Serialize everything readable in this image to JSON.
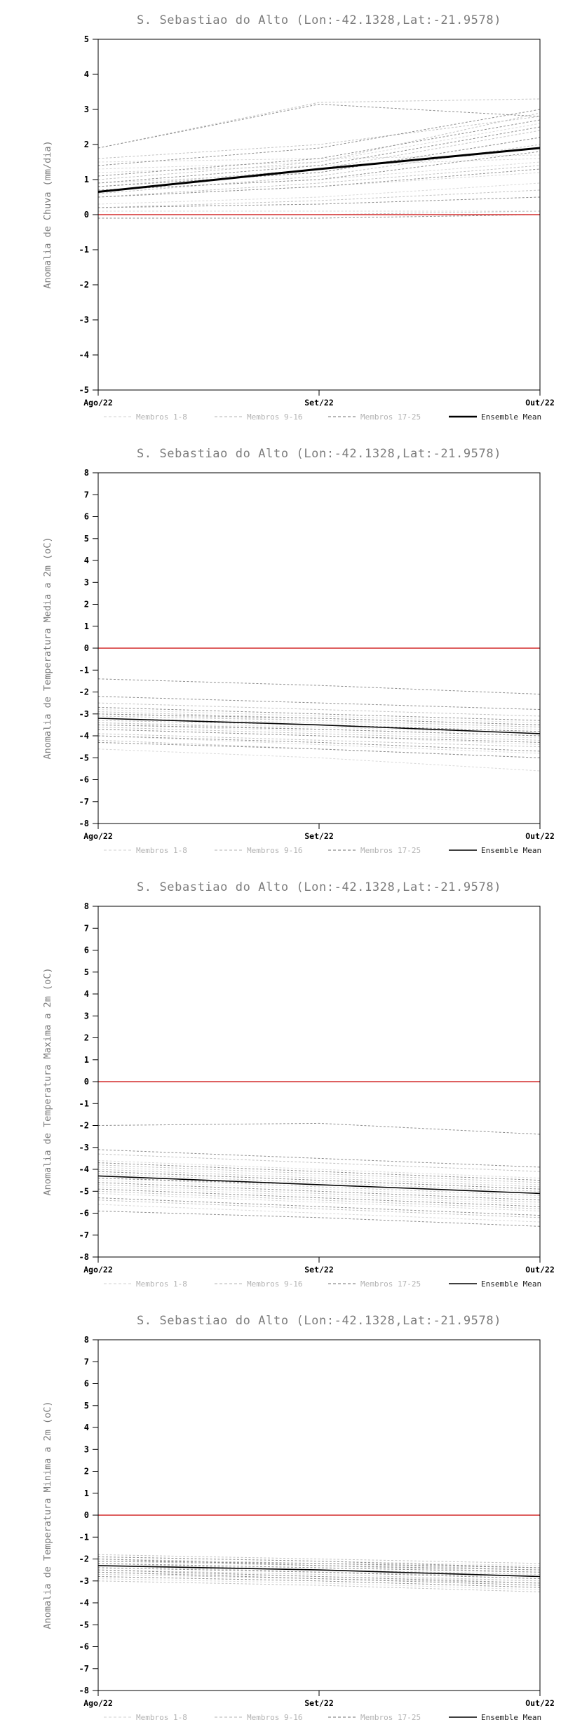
{
  "page": {
    "background": "#ffffff"
  },
  "legend": {
    "entries": [
      {
        "label": "Membros 1-8",
        "color": "#d9d9d9",
        "style": "dashed"
      },
      {
        "label": "Membros 9-16",
        "color": "#c2c2c2",
        "style": "dashed"
      },
      {
        "label": "Membros 17-25",
        "color": "#8e8e8e",
        "style": "dashed"
      },
      {
        "label": "Ensemble Mean",
        "color": "#000000",
        "style": "solid"
      }
    ]
  },
  "chart_data": [
    {
      "type": "line",
      "title": "S. Sebastiao do Alto (Lon:-42.1328,Lat:-21.9578)",
      "ylabel": "Anomalia de Chuva (mm/dia)",
      "ylim": [
        -5,
        5
      ],
      "ytick_step": 1,
      "x_categories": [
        "Ago/22",
        "Set/22",
        "Out/22"
      ],
      "zero_line": {
        "value": 0,
        "color": "#d94a4a"
      },
      "ensemble_mean": [
        0.65,
        1.3,
        1.9
      ],
      "mean_width": 3,
      "members": [
        {
          "group": 0,
          "lines": [
            [
              1.5,
              1.6,
              1.7
            ],
            [
              1.3,
              1.5,
              2.6
            ],
            [
              1.2,
              1.4,
              1.6
            ],
            [
              0.9,
              1.2,
              2.2
            ],
            [
              0.7,
              1.0,
              1.5
            ],
            [
              0.5,
              0.8,
              1.2
            ],
            [
              0.3,
              0.5,
              0.9
            ],
            [
              0.1,
              0.1,
              0.1
            ]
          ]
        },
        {
          "group": 1,
          "lines": [
            [
              1.9,
              3.2,
              3.3
            ],
            [
              1.0,
              1.5,
              2.9
            ],
            [
              0.8,
              1.3,
              2.4
            ],
            [
              0.6,
              1.1,
              2.0
            ],
            [
              0.5,
              0.9,
              1.4
            ],
            [
              0.2,
              0.4,
              0.7
            ],
            [
              0.0,
              0.0,
              0.1
            ],
            [
              1.6,
              2.0,
              2.8
            ]
          ]
        },
        {
          "group": 2,
          "lines": [
            [
              1.9,
              3.15,
              2.8
            ],
            [
              1.4,
              1.9,
              3.0
            ],
            [
              1.1,
              1.6,
              2.7
            ],
            [
              0.9,
              1.4,
              2.5
            ],
            [
              0.8,
              1.2,
              2.2
            ],
            [
              0.7,
              1.0,
              1.8
            ],
            [
              0.5,
              0.8,
              1.3
            ],
            [
              0.2,
              0.3,
              0.5
            ],
            [
              -0.1,
              -0.1,
              0.0
            ]
          ]
        }
      ]
    },
    {
      "type": "line",
      "title": "S. Sebastiao do Alto (Lon:-42.1328,Lat:-21.9578)",
      "ylabel": "Anomalia de Temperatura Media a 2m (oC)",
      "ylim": [
        -8,
        8
      ],
      "ytick_step": 1,
      "x_categories": [
        "Ago/22",
        "Set/22",
        "Out/22"
      ],
      "zero_line": {
        "value": 0,
        "color": "#d94a4a"
      },
      "ensemble_mean": [
        -3.2,
        -3.5,
        -3.9
      ],
      "mean_width": 1.6,
      "members": [
        {
          "group": 0,
          "lines": [
            [
              -2.8,
              -3.1,
              -3.4
            ],
            [
              -3.0,
              -3.3,
              -3.6
            ],
            [
              -3.2,
              -3.4,
              -3.7
            ],
            [
              -3.4,
              -3.6,
              -3.9
            ],
            [
              -3.5,
              -3.8,
              -4.1
            ],
            [
              -3.7,
              -4.0,
              -4.4
            ],
            [
              -4.0,
              -4.4,
              -4.8
            ],
            [
              -4.6,
              -5.0,
              -5.6
            ]
          ]
        },
        {
          "group": 1,
          "lines": [
            [
              -2.5,
              -2.8,
              -3.1
            ],
            [
              -2.9,
              -3.2,
              -3.5
            ],
            [
              -3.1,
              -3.3,
              -3.6
            ],
            [
              -3.3,
              -3.5,
              -3.8
            ],
            [
              -3.4,
              -3.7,
              -4.0
            ],
            [
              -3.6,
              -3.9,
              -4.2
            ],
            [
              -3.9,
              -4.2,
              -4.5
            ],
            [
              -4.2,
              -4.6,
              -5.0
            ]
          ]
        },
        {
          "group": 2,
          "lines": [
            [
              -1.4,
              -1.7,
              -2.1
            ],
            [
              -2.2,
              -2.5,
              -2.8
            ],
            [
              -2.7,
              -3.0,
              -3.3
            ],
            [
              -3.0,
              -3.2,
              -3.5
            ],
            [
              -3.2,
              -3.5,
              -3.8
            ],
            [
              -3.5,
              -3.7,
              -4.0
            ],
            [
              -3.7,
              -4.0,
              -4.3
            ],
            [
              -4.0,
              -4.3,
              -4.7
            ],
            [
              -4.3,
              -4.6,
              -5.0
            ]
          ]
        }
      ]
    },
    {
      "type": "line",
      "title": "S. Sebastiao do Alto (Lon:-42.1328,Lat:-21.9578)",
      "ylabel": "Anomalia de Temperatura Maxima a 2m (oC)",
      "ylim": [
        -8,
        8
      ],
      "ytick_step": 1,
      "x_categories": [
        "Ago/22",
        "Set/22",
        "Out/22"
      ],
      "zero_line": {
        "value": 0,
        "color": "#d94a4a"
      },
      "ensemble_mean": [
        -4.3,
        -4.7,
        -5.1
      ],
      "mean_width": 1.6,
      "members": [
        {
          "group": 0,
          "lines": [
            [
              -3.6,
              -4.0,
              -4.4
            ],
            [
              -3.9,
              -4.3,
              -4.7
            ],
            [
              -4.1,
              -4.5,
              -4.9
            ],
            [
              -4.3,
              -4.7,
              -5.1
            ],
            [
              -4.5,
              -4.9,
              -5.3
            ],
            [
              -4.8,
              -5.2,
              -5.6
            ],
            [
              -5.1,
              -5.5,
              -5.9
            ],
            [
              -5.6,
              -6.0,
              -6.4
            ]
          ]
        },
        {
          "group": 1,
          "lines": [
            [
              -3.3,
              -3.7,
              -4.1
            ],
            [
              -3.8,
              -4.2,
              -4.6
            ],
            [
              -4.0,
              -4.4,
              -4.8
            ],
            [
              -4.2,
              -4.6,
              -5.0
            ],
            [
              -4.4,
              -4.8,
              -5.2
            ],
            [
              -4.7,
              -5.1,
              -5.5
            ],
            [
              -5.0,
              -5.4,
              -5.8
            ],
            [
              -5.4,
              -5.8,
              -6.2
            ]
          ]
        },
        {
          "group": 2,
          "lines": [
            [
              -2.0,
              -1.9,
              -2.4
            ],
            [
              -3.1,
              -3.5,
              -3.9
            ],
            [
              -3.7,
              -4.1,
              -4.5
            ],
            [
              -4.1,
              -4.5,
              -4.9
            ],
            [
              -4.4,
              -4.7,
              -5.1
            ],
            [
              -4.6,
              -5.0,
              -5.4
            ],
            [
              -4.9,
              -5.3,
              -5.7
            ],
            [
              -5.3,
              -5.7,
              -6.1
            ],
            [
              -5.9,
              -6.2,
              -6.6
            ]
          ]
        }
      ]
    },
    {
      "type": "line",
      "title": "S. Sebastiao do Alto (Lon:-42.1328,Lat:-21.9578)",
      "ylabel": "Anomalia de Temperatura Minima a 2m (oC)",
      "ylim": [
        -8,
        8
      ],
      "ytick_step": 1,
      "x_categories": [
        "Ago/22",
        "Set/22",
        "Out/22"
      ],
      "zero_line": {
        "value": 0,
        "color": "#d94a4a"
      },
      "ensemble_mean": [
        -2.3,
        -2.5,
        -2.8
      ],
      "mean_width": 1.6,
      "members": [
        {
          "group": 0,
          "lines": [
            [
              -1.9,
              -2.1,
              -2.3
            ],
            [
              -2.0,
              -2.2,
              -2.4
            ],
            [
              -2.1,
              -2.3,
              -2.5
            ],
            [
              -2.2,
              -2.4,
              -2.6
            ],
            [
              -2.3,
              -2.5,
              -2.7
            ],
            [
              -2.4,
              -2.6,
              -2.9
            ],
            [
              -2.6,
              -2.8,
              -3.0
            ],
            [
              -2.9,
              -3.1,
              -3.4
            ]
          ]
        },
        {
          "group": 1,
          "lines": [
            [
              -1.8,
              -2.0,
              -2.2
            ],
            [
              -2.0,
              -2.2,
              -2.5
            ],
            [
              -2.1,
              -2.3,
              -2.6
            ],
            [
              -2.2,
              -2.5,
              -2.7
            ],
            [
              -2.3,
              -2.6,
              -2.8
            ],
            [
              -2.5,
              -2.7,
              -3.0
            ],
            [
              -2.7,
              -2.9,
              -3.1
            ],
            [
              -3.0,
              -3.2,
              -3.5
            ]
          ]
        },
        {
          "group": 2,
          "lines": [
            [
              -1.9,
              -2.1,
              -2.4
            ],
            [
              -2.0,
              -2.3,
              -2.5
            ],
            [
              -2.2,
              -2.4,
              -2.6
            ],
            [
              -2.3,
              -2.5,
              -2.8
            ],
            [
              -2.4,
              -2.6,
              -2.9
            ],
            [
              -2.5,
              -2.8,
              -3.1
            ],
            [
              -2.6,
              -2.9,
              -3.2
            ],
            [
              -2.8,
              -3.0,
              -3.3
            ],
            [
              -2.1,
              -2.2,
              -2.4
            ]
          ]
        }
      ]
    }
  ]
}
